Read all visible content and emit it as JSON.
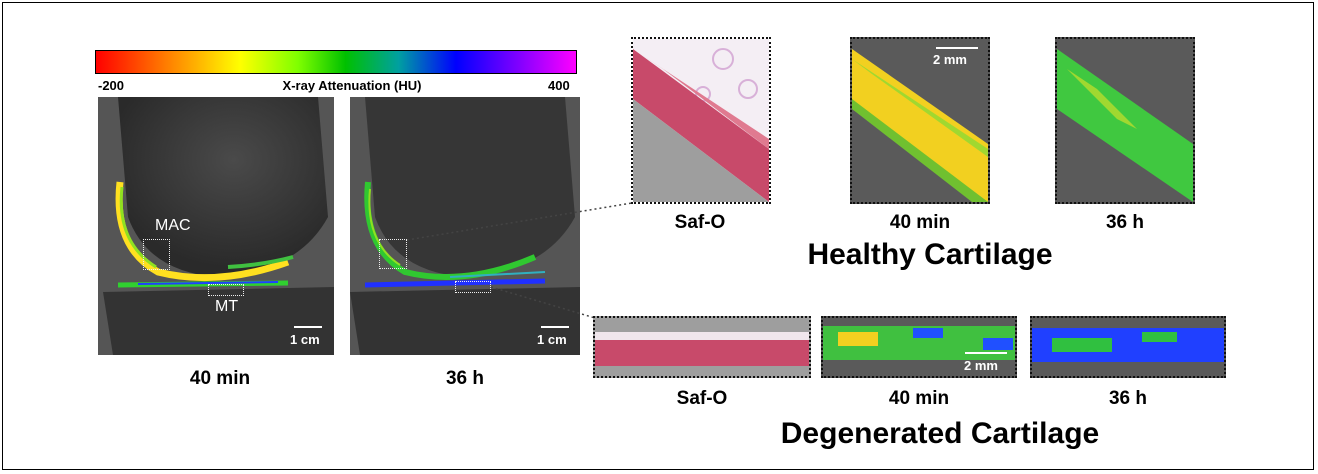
{
  "colorbar": {
    "title": "X-ray Attenuation (HU)",
    "min_label": "-200",
    "max_label": "400",
    "colors": [
      "#ff0000",
      "#ff8000",
      "#ffff00",
      "#80ff00",
      "#00c000",
      "#00a0a0",
      "#0000ff",
      "#8000ff",
      "#ff00ff"
    ]
  },
  "ct_panels": [
    {
      "caption": "40 min",
      "scalebar": "1 cm",
      "roi_labels": [
        "MAC",
        "MT"
      ]
    },
    {
      "caption": "36 h",
      "scalebar": "1 cm"
    }
  ],
  "healthy": {
    "heading": "Healthy Cartilage",
    "panels": [
      {
        "caption": "Saf-O"
      },
      {
        "caption": "40 min",
        "scalebar": "2 mm"
      },
      {
        "caption": "36 h"
      }
    ]
  },
  "degenerated": {
    "heading": "Degenerated Cartilage",
    "panels": [
      {
        "caption": "Saf-O"
      },
      {
        "caption": "40 min",
        "scalebar": "2 mm"
      },
      {
        "caption": "36 h"
      }
    ]
  }
}
